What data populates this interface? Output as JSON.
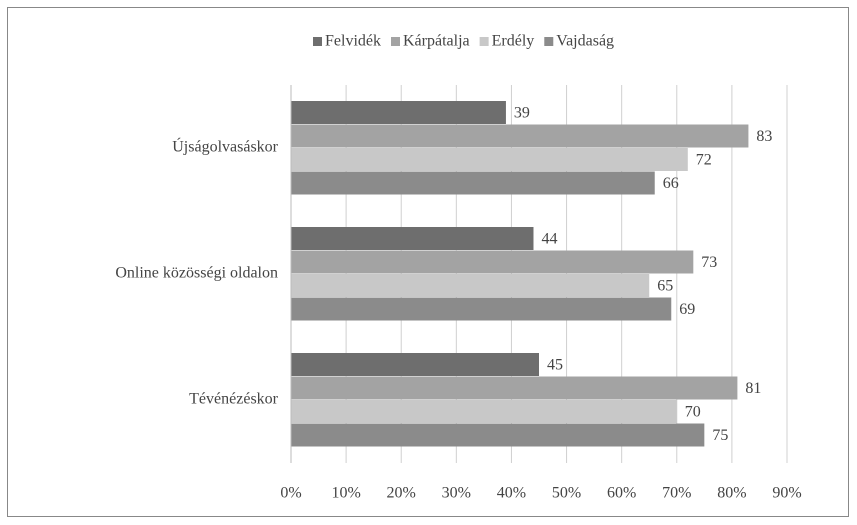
{
  "chart_data": {
    "type": "barh",
    "categories": [
      "Újságolvasáskor",
      "Online közösségi oldalon",
      "Tévénézéskor"
    ],
    "series": [
      {
        "name": "Felvidék",
        "color": "#6e6e6e",
        "values": [
          39,
          44,
          45
        ]
      },
      {
        "name": "Kárpátalja",
        "color": "#a3a3a3",
        "values": [
          83,
          73,
          81
        ]
      },
      {
        "name": "Erdély",
        "color": "#c8c8c8",
        "values": [
          72,
          65,
          70
        ]
      },
      {
        "name": "Vajdaság",
        "color": "#8b8b8b",
        "values": [
          66,
          69,
          75
        ]
      }
    ],
    "xlim": [
      0,
      90
    ],
    "xticks": [
      {
        "value": 0,
        "label": "0%"
      },
      {
        "value": 10,
        "label": "10%"
      },
      {
        "value": 20,
        "label": "20%"
      },
      {
        "value": 30,
        "label": "30%"
      },
      {
        "value": 40,
        "label": "40%"
      },
      {
        "value": 50,
        "label": "50%"
      },
      {
        "value": 60,
        "label": "60%"
      },
      {
        "value": 70,
        "label": "70%"
      },
      {
        "value": 80,
        "label": "80%"
      },
      {
        "value": 90,
        "label": "90%"
      }
    ],
    "grid": true,
    "legend": "top"
  }
}
